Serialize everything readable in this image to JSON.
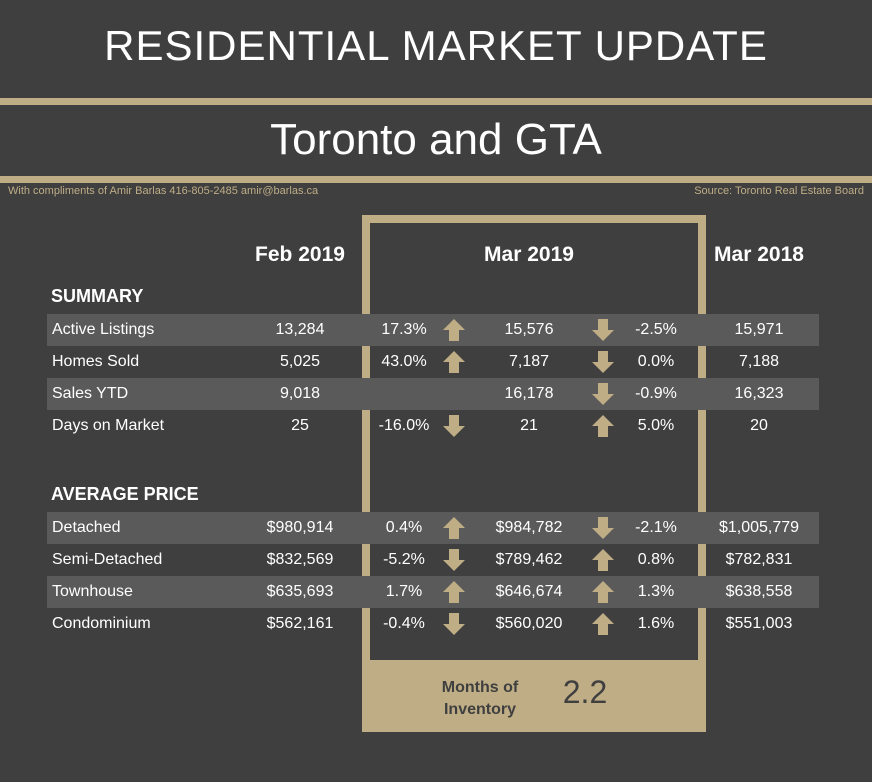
{
  "header": {
    "title": "RESIDENTIAL MARKET UPDATE",
    "subtitle": "Toronto and GTA",
    "credit": "With compliments of Amir Barlas 416-805-2485 amir@barlas.ca",
    "source": "Source: Toronto Real Estate Board"
  },
  "columns": {
    "feb": "Feb 2019",
    "mar19": "Mar 2019",
    "mar18": "Mar 2018"
  },
  "sections": {
    "summary": "SUMMARY",
    "average_price": "AVERAGE PRICE"
  },
  "colors": {
    "accent": "#bfad86",
    "background": "#3f3f3f",
    "band": "#5a5a5a"
  },
  "summary_rows": [
    {
      "label": "Active Listings",
      "feb": "13,284",
      "pct1": "17.3%",
      "dir1": "up",
      "mar19": "15,576",
      "dir2": "down",
      "pct2": "-2.5%",
      "mar18": "15,971"
    },
    {
      "label": "Homes Sold",
      "feb": "5,025",
      "pct1": "43.0%",
      "dir1": "up",
      "mar19": "7,187",
      "dir2": "down",
      "pct2": "0.0%",
      "mar18": "7,188"
    },
    {
      "label": "Sales YTD",
      "feb": "9,018",
      "pct1": "",
      "dir1": "",
      "mar19": "16,178",
      "dir2": "down",
      "pct2": "-0.9%",
      "mar18": "16,323"
    },
    {
      "label": "Days on Market",
      "feb": "25",
      "pct1": "-16.0%",
      "dir1": "down",
      "mar19": "21",
      "dir2": "up",
      "pct2": "5.0%",
      "mar18": "20"
    }
  ],
  "price_rows": [
    {
      "label": "Detached",
      "feb": "$980,914",
      "pct1": "0.4%",
      "dir1": "up",
      "mar19": "$984,782",
      "dir2": "down",
      "pct2": "-2.1%",
      "mar18": "$1,005,779"
    },
    {
      "label": "Semi-Detached",
      "feb": "$832,569",
      "pct1": "-5.2%",
      "dir1": "down",
      "mar19": "$789,462",
      "dir2": "up",
      "pct2": "0.8%",
      "mar18": "$782,831"
    },
    {
      "label": "Townhouse",
      "feb": "$635,693",
      "pct1": "1.7%",
      "dir1": "up",
      "mar19": "$646,674",
      "dir2": "up",
      "pct2": "1.3%",
      "mar18": "$638,558"
    },
    {
      "label": "Condominium",
      "feb": "$562,161",
      "pct1": "-0.4%",
      "dir1": "down",
      "mar19": "$560,020",
      "dir2": "up",
      "pct2": "1.6%",
      "mar18": "$551,003"
    }
  ],
  "inventory": {
    "label_line1": "Months of",
    "label_line2": "Inventory",
    "value": "2.2"
  }
}
